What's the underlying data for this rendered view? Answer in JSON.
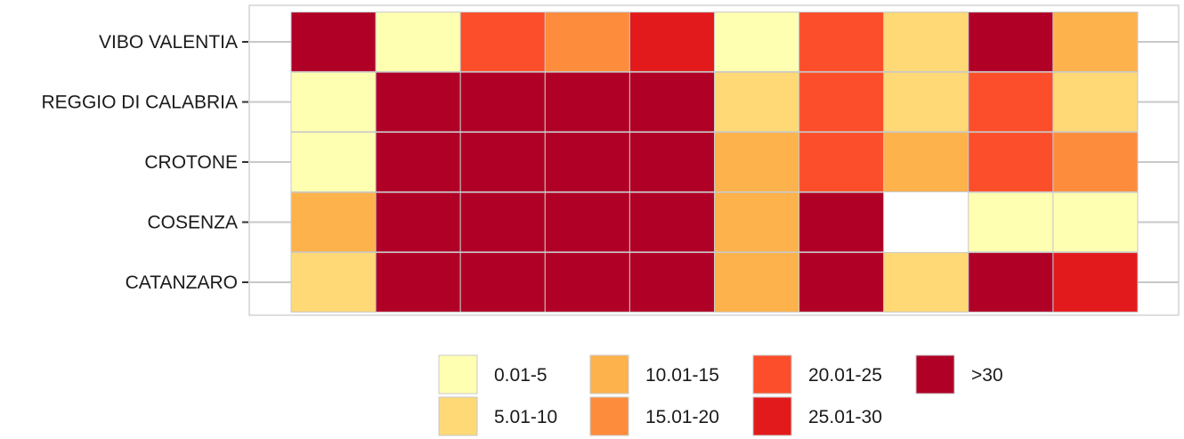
{
  "chart_data": {
    "type": "heatmap",
    "title": "",
    "xlabel": "",
    "ylabel": "",
    "rows": [
      "VIBO VALENTIA",
      "REGGIO DI CALABRIA",
      "CROTONE",
      "COSENZA",
      "CATANZARO"
    ],
    "n_columns": 10,
    "values": [
      [
        ">30",
        "0.01-5",
        "20.01-25",
        "15.01-20",
        "25.01-30",
        "0.01-5",
        "20.01-25",
        "5.01-10",
        ">30",
        "10.01-15"
      ],
      [
        "0.01-5",
        ">30",
        ">30",
        ">30",
        ">30",
        "5.01-10",
        "20.01-25",
        "5.01-10",
        "20.01-25",
        "5.01-10"
      ],
      [
        "0.01-5",
        ">30",
        ">30",
        ">30",
        ">30",
        "10.01-15",
        "20.01-25",
        "10.01-15",
        "20.01-25",
        "15.01-20"
      ],
      [
        "10.01-15",
        ">30",
        ">30",
        ">30",
        ">30",
        "10.01-15",
        ">30",
        null,
        "0.01-5",
        "0.01-5"
      ],
      [
        "5.01-10",
        ">30",
        ">30",
        ">30",
        ">30",
        "10.01-15",
        ">30",
        "5.01-10",
        ">30",
        "25.01-30"
      ]
    ],
    "legend": {
      "position": "bottom",
      "items": [
        {
          "label": "0.01-5",
          "color": "#FFFFB2"
        },
        {
          "label": "5.01-10",
          "color": "#FED976"
        },
        {
          "label": "10.01-15",
          "color": "#FEB24C"
        },
        {
          "label": "15.01-20",
          "color": "#FD8D3C"
        },
        {
          "label": "20.01-25",
          "color": "#FC4E2A"
        },
        {
          "label": "25.01-30",
          "color": "#E31A1C"
        },
        {
          "label": ">30",
          "color": "#B10026"
        }
      ]
    },
    "grid": true
  }
}
